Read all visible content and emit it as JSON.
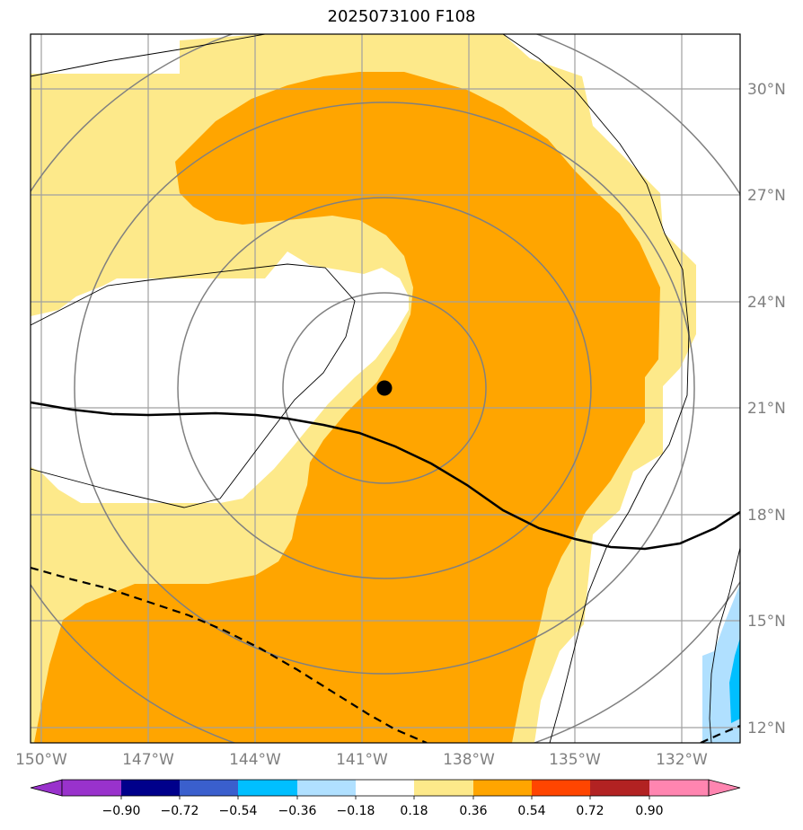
{
  "title": "2025073100 F108",
  "map": {
    "projection": "lat-lon",
    "lon_range": [
      -150,
      -130.7
    ],
    "lat_range": [
      11.5,
      32.5
    ],
    "lon_ticks": [
      {
        "value": -150,
        "label": "150°W"
      },
      {
        "value": -147,
        "label": "147°W"
      },
      {
        "value": -144,
        "label": "144°W"
      },
      {
        "value": -141,
        "label": "141°W"
      },
      {
        "value": -138,
        "label": "138°W"
      },
      {
        "value": -135,
        "label": "135°W"
      },
      {
        "value": -132,
        "label": "132°W"
      }
    ],
    "lat_ticks": [
      {
        "value": 30,
        "label": "30°N"
      },
      {
        "value": 27,
        "label": "27°N"
      },
      {
        "value": 24,
        "label": "24°N"
      },
      {
        "value": 21,
        "label": "21°N"
      },
      {
        "value": 18,
        "label": "18°N"
      },
      {
        "value": 15,
        "label": "15°N"
      },
      {
        "value": 12,
        "label": "12°N"
      }
    ],
    "gridlines": true,
    "storm_center": {
      "lon": -140.4,
      "lat": 21.6
    },
    "colors": {
      "fill_light": "#fde98a",
      "fill_orange": "#ffa500",
      "fill_lightblue": "#b0e0ff",
      "fill_blue": "#00bfff",
      "grid": "#a0a0a0",
      "range_ring": "#808080",
      "marker": "#000000"
    }
  },
  "colorbar": {
    "ticks": [
      "−0.90",
      "−0.72",
      "−0.54",
      "−0.36",
      "−0.18",
      "0.18",
      "0.36",
      "0.54",
      "0.72",
      "0.90"
    ],
    "colors": [
      "#9932cc",
      "#00008b",
      "#3a5fcd",
      "#00bfff",
      "#b0e0ff",
      "#ffffff",
      "#fde98a",
      "#ffa500",
      "#ff4500",
      "#b22222",
      "#ff85b0",
      "#ff85b0"
    ]
  }
}
